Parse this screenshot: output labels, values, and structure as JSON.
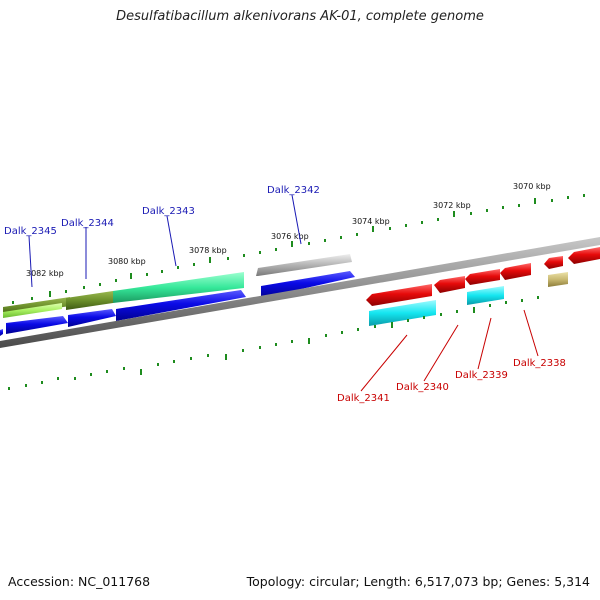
{
  "header": {
    "title": "Desulfatibacillum alkenivorans AK-01, complete genome"
  },
  "footer": {
    "accession": "Accession: NC_011768",
    "summary": "Topology: circular; Length: 6,517,073 bp; Genes: 5,314"
  },
  "scale_labels": [
    "3082 kbp",
    "3080 kbp",
    "3078 kbp",
    "3076 kbp",
    "3074 kbp",
    "3072 kbp",
    "3070 kbp"
  ],
  "genes_forward": [
    "Dalk_2345",
    "Dalk_2344",
    "Dalk_2343",
    "Dalk_2342"
  ],
  "genes_reverse": [
    "Dalk_2341",
    "Dalk_2340",
    "Dalk_2339",
    "Dalk_2338"
  ],
  "colors": {
    "forward_label": "#1a1ab4",
    "reverse_label": "#c80000",
    "backbone": "#8a8a8a",
    "tick": "#1e8c1e",
    "blue_gene": "#0a0ae6",
    "red_gene": "#e60a0a",
    "cyan_gene": "#14e6f0",
    "green_gene": "#36e89a",
    "olive_gene": "#6b8f2a",
    "lime_gene": "#a8f060",
    "gray_gene": "#b4b4b4",
    "khaki_gene": "#c8b870"
  }
}
